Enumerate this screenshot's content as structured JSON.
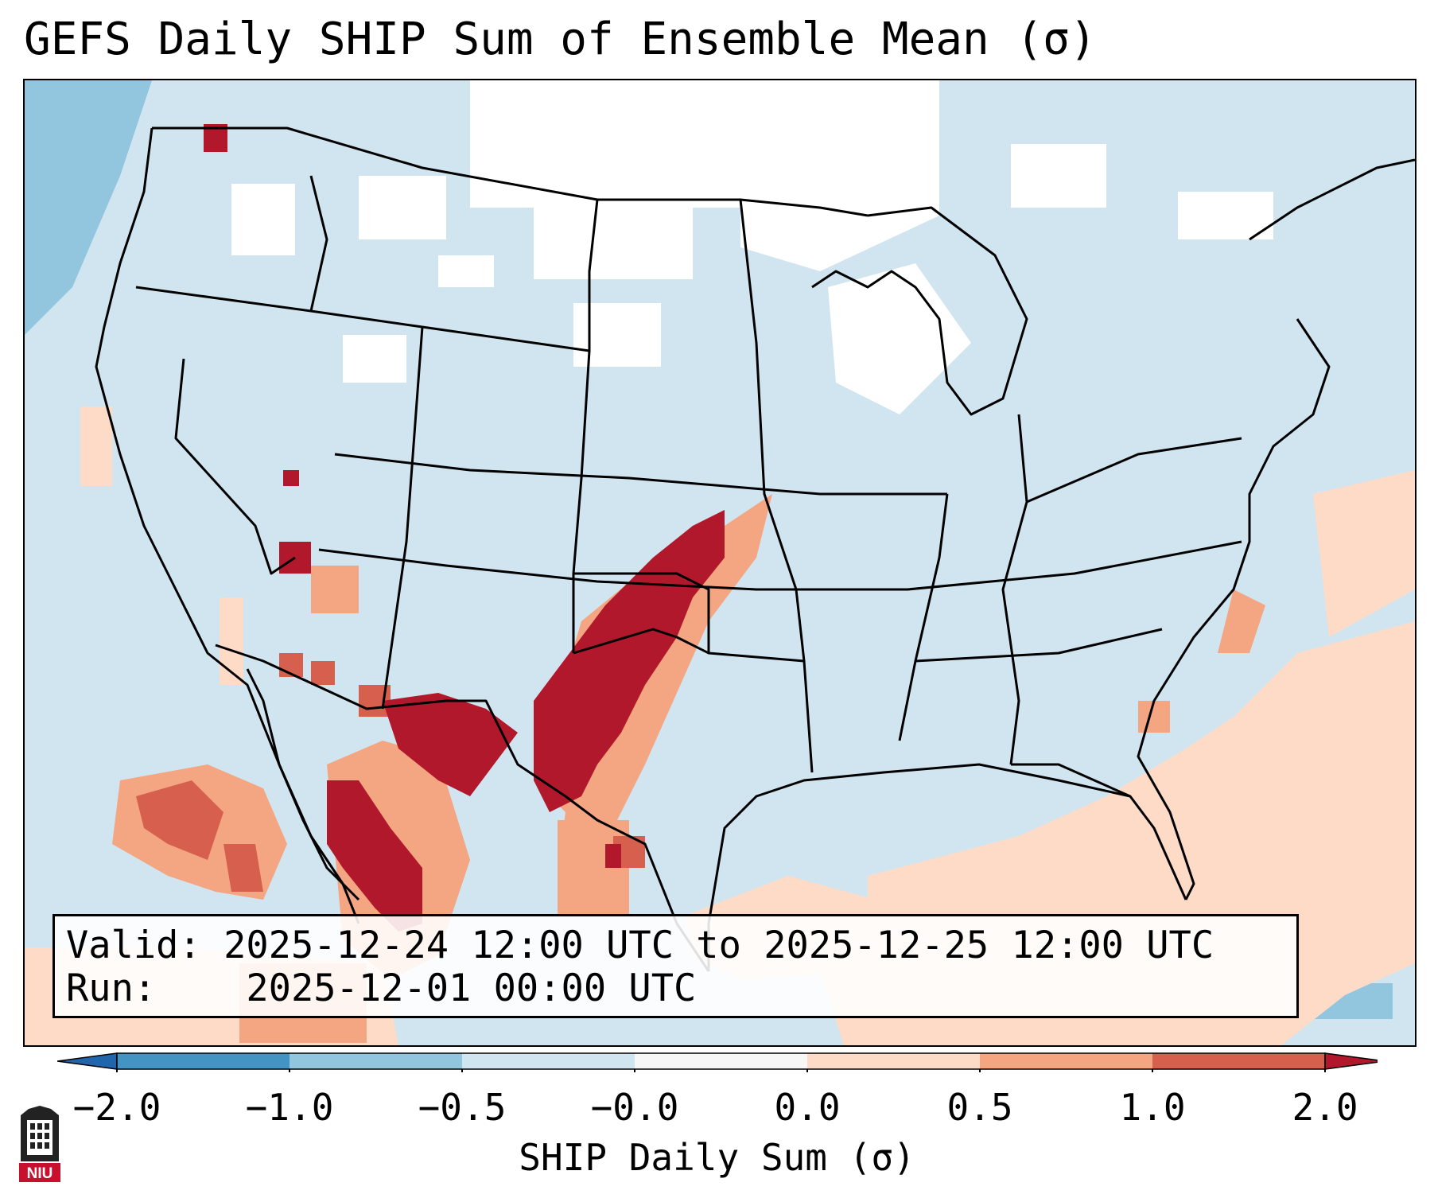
{
  "title": "GEFS Daily SHIP Sum of Ensemble Mean (σ)",
  "info": {
    "valid_label": "Valid:",
    "valid_value": "2025-12-24 12:00 UTC to 2025-12-25 12:00 UTC",
    "run_label": "Run:",
    "run_value": "2025-12-01 00:00 UTC"
  },
  "colorbar": {
    "label": "SHIP Daily Sum (σ)",
    "ticks": [
      "−2.0",
      "−1.0",
      "−0.5",
      "−0.0",
      "0.0",
      "0.5",
      "1.0",
      "2.0"
    ],
    "colors": [
      "#4393c3",
      "#92c5de",
      "#d1e5f0",
      "#f7f7f7",
      "#fddbc7",
      "#f4a582",
      "#d6604d"
    ],
    "under_color": "#2166ac",
    "over_color": "#b2182b"
  },
  "map": {
    "region": "CONUS",
    "field": "SHIP daily sum anomaly (σ)",
    "background_color": "#d1e5f0",
    "border_color": "#000000"
  },
  "logo": {
    "text": "NIU"
  }
}
